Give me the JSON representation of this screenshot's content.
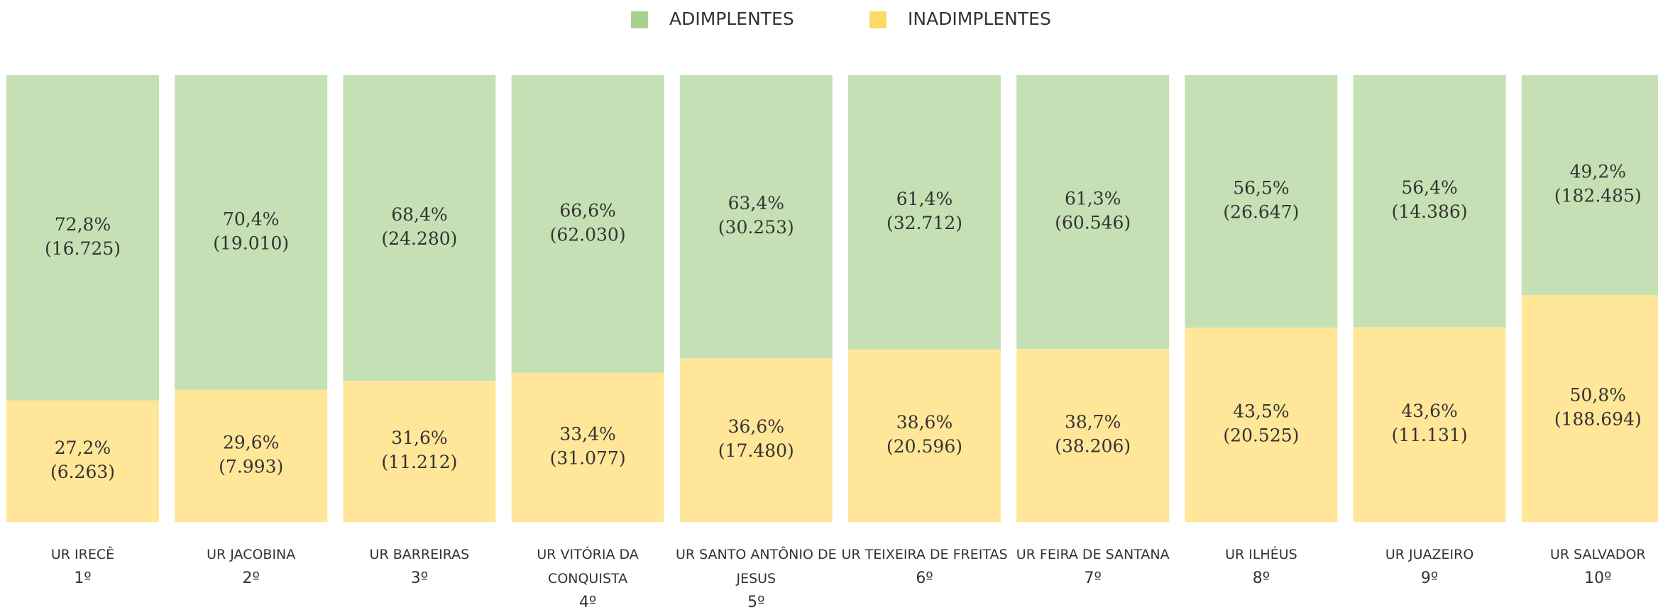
{
  "chart_data": {
    "type": "stacked_bar_100",
    "categories": [
      "UR IRECÊ",
      "UR JACOBINA",
      "UR BARREIRAS",
      "UR VITÓRIA DA CONQUISTA",
      "UR SANTO ANTÔNIO DE JESUS",
      "UR TEIXEIRA DE FREITAS",
      "UR FEIRA DE SANTANA",
      "UR ILHÉUS",
      "UR JUAZEIRO",
      "UR SALVADOR"
    ],
    "ranks": [
      "1º",
      "2º",
      "3º",
      "4º",
      "5º",
      "6º",
      "7º",
      "8º",
      "9º",
      "10º"
    ],
    "ylim": [
      0,
      100
    ],
    "legend": "top",
    "series": [
      {
        "name": "ADIMPLENTES",
        "color": "#c5e0b4",
        "legend_color": "#a9d18e",
        "values": [
          72.8,
          70.4,
          68.4,
          66.6,
          63.4,
          61.4,
          61.3,
          56.5,
          56.4,
          49.2
        ],
        "value_labels": [
          "72,8%",
          "70,4%",
          "68,4%",
          "66,6%",
          "63,4%",
          "61,4%",
          "61,3%",
          "56,5%",
          "56,4%",
          "49,2%"
        ],
        "counts": [
          16725,
          19010,
          24280,
          62030,
          30253,
          32712,
          60546,
          26647,
          14386,
          182485
        ],
        "count_labels": [
          "(16.725)",
          "(19.010)",
          "(24.280)",
          "(62.030)",
          "(30.253)",
          "(32.712)",
          "(60.546)",
          "(26.647)",
          "(14.386)",
          "(182.485)"
        ]
      },
      {
        "name": "INADIMPLENTES",
        "color": "#ffe699",
        "legend_color": "#ffd966",
        "values": [
          27.2,
          29.6,
          31.6,
          33.4,
          36.6,
          38.6,
          38.7,
          43.5,
          43.6,
          50.8
        ],
        "value_labels": [
          "27,2%",
          "29,6%",
          "31,6%",
          "33,4%",
          "36,6%",
          "38,6%",
          "38,7%",
          "43,5%",
          "43,6%",
          "50,8%"
        ],
        "counts": [
          6263,
          7993,
          11212,
          31077,
          17480,
          20596,
          38206,
          20525,
          11131,
          188694
        ],
        "count_labels": [
          "(6.263)",
          "(7.993)",
          "(11.212)",
          "(31.077)",
          "(17.480)",
          "(20.596)",
          "(38.206)",
          "(20.525)",
          "(11.131)",
          "(188.694)"
        ]
      }
    ]
  }
}
